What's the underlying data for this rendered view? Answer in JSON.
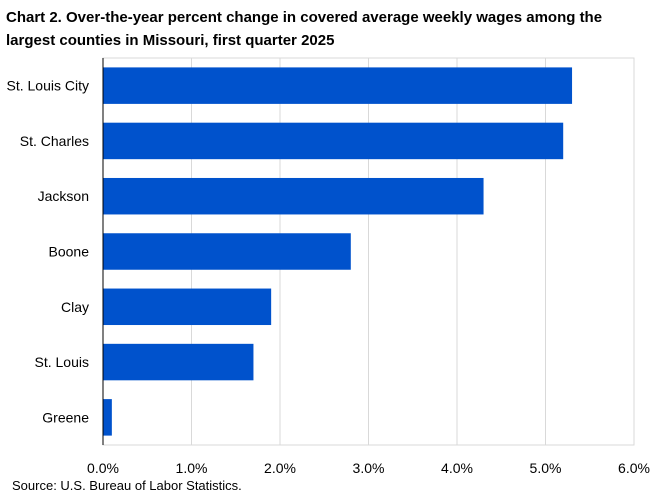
{
  "chart_data": {
    "type": "bar",
    "orientation": "horizontal",
    "title": "Chart 2. Over-the-year percent change in covered average weekly wages among the largest counties in Missouri, first quarter 2025",
    "categories": [
      "St. Louis City",
      "St. Charles",
      "Jackson",
      "Boone",
      "Clay",
      "St. Louis",
      "Greene"
    ],
    "values": [
      5.3,
      5.2,
      4.3,
      2.8,
      1.9,
      1.7,
      0.1
    ],
    "unit": "%",
    "xlim": [
      0,
      6
    ],
    "ticks": [
      0,
      1,
      2,
      3,
      4,
      5,
      6
    ],
    "tick_labels": [
      "0.0%",
      "1.0%",
      "2.0%",
      "3.0%",
      "4.0%",
      "5.0%",
      "6.0%"
    ],
    "grid": true,
    "legend": "none",
    "bar_color": "#0052cc",
    "xlabel": "",
    "ylabel": "",
    "source": "Source: U.S. Bureau of Labor Statistics."
  }
}
